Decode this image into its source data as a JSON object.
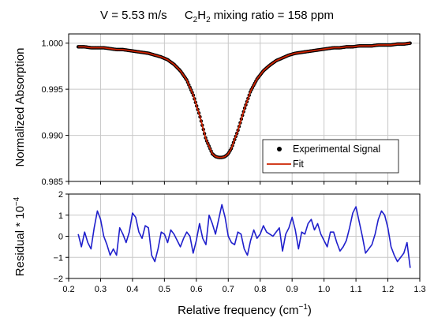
{
  "title": {
    "speed": "V = 5.53 m/s",
    "species_main": "C",
    "species_sub1": "2",
    "species_mid": "H",
    "species_sub2": "2",
    "ratio": " mixing ratio = 158 ppm"
  },
  "chart_data": [
    {
      "type": "scatter",
      "panel": "top",
      "ylabel": "Normalized Absorption",
      "xlim": [
        0.2,
        1.3
      ],
      "ylim": [
        0.985,
        1.001
      ],
      "x_ticks": [
        "0.2",
        "0.3",
        "0.4",
        "0.5",
        "0.6",
        "0.7",
        "0.8",
        "0.9",
        "1.0",
        "1.1",
        "1.2",
        "1.3"
      ],
      "y_ticks": [
        "0.985",
        "0.990",
        "0.995",
        "1.000"
      ],
      "y_tick_values": [
        0.985,
        0.99,
        0.995,
        1.0
      ],
      "grid": true,
      "legend_position": "bottom-right",
      "legend": [
        "Experimental Signal",
        "Fit"
      ],
      "series": [
        {
          "name": "Experimental Signal",
          "style": "points",
          "color": "#000000",
          "x": [
            0.23,
            0.25,
            0.27,
            0.29,
            0.31,
            0.33,
            0.35,
            0.37,
            0.39,
            0.41,
            0.43,
            0.45,
            0.47,
            0.49,
            0.51,
            0.53,
            0.55,
            0.57,
            0.59,
            0.61,
            0.63,
            0.65,
            0.66,
            0.67,
            0.68,
            0.69,
            0.7,
            0.71,
            0.73,
            0.75,
            0.77,
            0.79,
            0.81,
            0.83,
            0.85,
            0.87,
            0.89,
            0.91,
            0.93,
            0.95,
            0.97,
            0.99,
            1.01,
            1.03,
            1.05,
            1.07,
            1.09,
            1.11,
            1.13,
            1.15,
            1.17,
            1.19,
            1.21,
            1.23,
            1.25,
            1.27
          ],
          "y": [
            0.9996,
            0.9996,
            0.9995,
            0.9995,
            0.9995,
            0.9994,
            0.9993,
            0.9993,
            0.9992,
            0.9991,
            0.999,
            0.9989,
            0.9987,
            0.9985,
            0.9982,
            0.9977,
            0.997,
            0.996,
            0.9944,
            0.9922,
            0.9896,
            0.988,
            0.9877,
            0.9876,
            0.9876,
            0.9877,
            0.988,
            0.9886,
            0.9905,
            0.9928,
            0.9948,
            0.9961,
            0.997,
            0.9976,
            0.9981,
            0.9984,
            0.9987,
            0.9989,
            0.999,
            0.9991,
            0.9992,
            0.9993,
            0.9994,
            0.9995,
            0.9995,
            0.9996,
            0.9996,
            0.9997,
            0.9997,
            0.9997,
            0.9998,
            0.9998,
            0.9998,
            0.9999,
            0.9999,
            1.0
          ]
        },
        {
          "name": "Fit",
          "style": "line",
          "color": "#cc2200",
          "x": [
            0.23,
            0.25,
            0.27,
            0.29,
            0.31,
            0.33,
            0.35,
            0.37,
            0.39,
            0.41,
            0.43,
            0.45,
            0.47,
            0.49,
            0.51,
            0.53,
            0.55,
            0.57,
            0.59,
            0.61,
            0.63,
            0.65,
            0.66,
            0.67,
            0.68,
            0.69,
            0.7,
            0.71,
            0.73,
            0.75,
            0.77,
            0.79,
            0.81,
            0.83,
            0.85,
            0.87,
            0.89,
            0.91,
            0.93,
            0.95,
            0.97,
            0.99,
            1.01,
            1.03,
            1.05,
            1.07,
            1.09,
            1.11,
            1.13,
            1.15,
            1.17,
            1.19,
            1.21,
            1.23,
            1.25,
            1.27
          ],
          "y": [
            0.9996,
            0.9996,
            0.9995,
            0.9995,
            0.9995,
            0.9994,
            0.9993,
            0.9993,
            0.9992,
            0.9991,
            0.999,
            0.9989,
            0.9987,
            0.9985,
            0.9982,
            0.9977,
            0.997,
            0.996,
            0.9944,
            0.9922,
            0.9896,
            0.988,
            0.9877,
            0.9876,
            0.9876,
            0.9877,
            0.988,
            0.9886,
            0.9905,
            0.9928,
            0.9948,
            0.9961,
            0.997,
            0.9976,
            0.9981,
            0.9984,
            0.9987,
            0.9989,
            0.999,
            0.9991,
            0.9992,
            0.9993,
            0.9994,
            0.9995,
            0.9995,
            0.9996,
            0.9996,
            0.9997,
            0.9997,
            0.9997,
            0.9998,
            0.9998,
            0.9998,
            0.9999,
            0.9999,
            1.0
          ]
        }
      ]
    },
    {
      "type": "line",
      "panel": "bottom",
      "ylabel_main": "Residual * 10",
      "ylabel_exp": "−4",
      "xlabel_main": "Relative frequency (cm",
      "xlabel_exp": "−1",
      "xlabel_close": ")",
      "xlim": [
        0.2,
        1.3
      ],
      "ylim": [
        -2,
        2
      ],
      "x_ticks": [
        "0.2",
        "0.3",
        "0.4",
        "0.5",
        "0.6",
        "0.7",
        "0.8",
        "0.9",
        "1.0",
        "1.1",
        "1.2",
        "1.3"
      ],
      "y_ticks": [
        "−2",
        "−1",
        "0",
        "1",
        "2"
      ],
      "y_tick_values": [
        -2,
        -1,
        0,
        1,
        2
      ],
      "grid": true,
      "series": [
        {
          "name": "Residual",
          "color": "#1f1fcc",
          "x": [
            0.23,
            0.24,
            0.25,
            0.26,
            0.27,
            0.28,
            0.29,
            0.3,
            0.31,
            0.32,
            0.33,
            0.34,
            0.35,
            0.36,
            0.37,
            0.38,
            0.39,
            0.4,
            0.41,
            0.42,
            0.43,
            0.44,
            0.45,
            0.46,
            0.47,
            0.48,
            0.49,
            0.5,
            0.51,
            0.52,
            0.53,
            0.54,
            0.55,
            0.56,
            0.57,
            0.58,
            0.59,
            0.6,
            0.61,
            0.62,
            0.63,
            0.64,
            0.65,
            0.66,
            0.67,
            0.68,
            0.69,
            0.7,
            0.71,
            0.72,
            0.73,
            0.74,
            0.75,
            0.76,
            0.77,
            0.78,
            0.79,
            0.8,
            0.81,
            0.82,
            0.83,
            0.84,
            0.85,
            0.86,
            0.87,
            0.88,
            0.89,
            0.9,
            0.91,
            0.92,
            0.93,
            0.94,
            0.95,
            0.96,
            0.97,
            0.98,
            0.99,
            1.0,
            1.01,
            1.02,
            1.03,
            1.04,
            1.05,
            1.06,
            1.07,
            1.08,
            1.09,
            1.1,
            1.11,
            1.12,
            1.13,
            1.14,
            1.15,
            1.16,
            1.17,
            1.18,
            1.19,
            1.2,
            1.21,
            1.22,
            1.23,
            1.24,
            1.25,
            1.26,
            1.27
          ],
          "values": [
            0.1,
            -0.5,
            0.2,
            -0.3,
            -0.6,
            0.4,
            1.2,
            0.8,
            0.0,
            -0.4,
            -0.9,
            -0.6,
            -0.9,
            0.4,
            0.1,
            -0.3,
            0.2,
            1.1,
            0.9,
            0.2,
            -0.1,
            0.5,
            0.4,
            -0.9,
            -1.2,
            -0.6,
            0.2,
            0.1,
            -0.3,
            0.3,
            0.1,
            -0.2,
            -0.5,
            -0.1,
            0.2,
            0.0,
            -0.8,
            -0.2,
            0.6,
            -0.1,
            -0.4,
            1.0,
            0.6,
            0.1,
            0.8,
            1.5,
            0.9,
            0.0,
            -0.3,
            -0.4,
            0.2,
            0.1,
            -0.6,
            -0.9,
            -0.2,
            0.3,
            -0.1,
            0.1,
            0.5,
            0.2,
            0.1,
            0.0,
            0.2,
            0.4,
            -0.7,
            0.1,
            0.4,
            0.9,
            0.3,
            -0.6,
            0.2,
            0.1,
            0.6,
            0.8,
            0.3,
            0.6,
            0.1,
            -0.2,
            -0.5,
            0.2,
            0.2,
            -0.3,
            -0.7,
            -0.5,
            -0.2,
            0.4,
            1.1,
            1.4,
            0.7,
            0.0,
            -0.8,
            -0.6,
            -0.4,
            0.1,
            0.8,
            1.2,
            1.0,
            0.4,
            -0.5,
            -0.9,
            -1.2,
            -1.0,
            -0.8,
            -0.3,
            -1.5
          ]
        }
      ]
    }
  ]
}
